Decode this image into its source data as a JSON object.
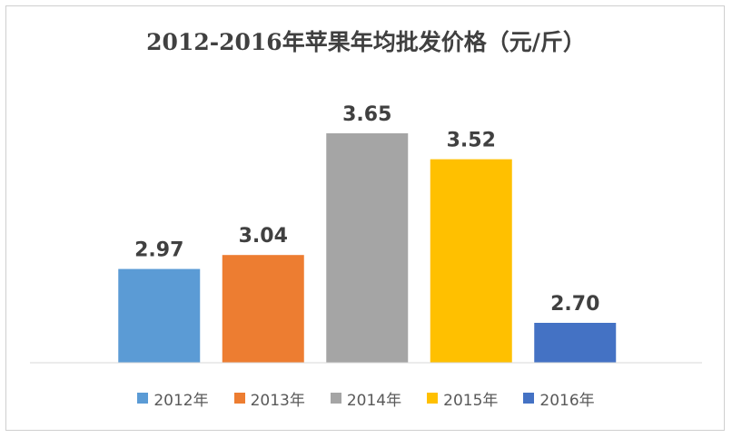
{
  "chart_data": {
    "type": "bar",
    "title": "2012-2016年苹果年均批发价格（元/斤）",
    "categories": [
      "2012年",
      "2013年",
      "2014年",
      "2015年",
      "2016年"
    ],
    "values": [
      2.97,
      3.04,
      3.65,
      3.52,
      2.7
    ],
    "value_labels": [
      "2.97",
      "3.04",
      "3.65",
      "3.52",
      "2.70"
    ],
    "colors": [
      "#5B9BD5",
      "#ED7D31",
      "#A5A5A5",
      "#FFC000",
      "#4472C4"
    ],
    "ylim": [
      2.5,
      3.8
    ],
    "grid": false,
    "legend_position": "bottom"
  }
}
